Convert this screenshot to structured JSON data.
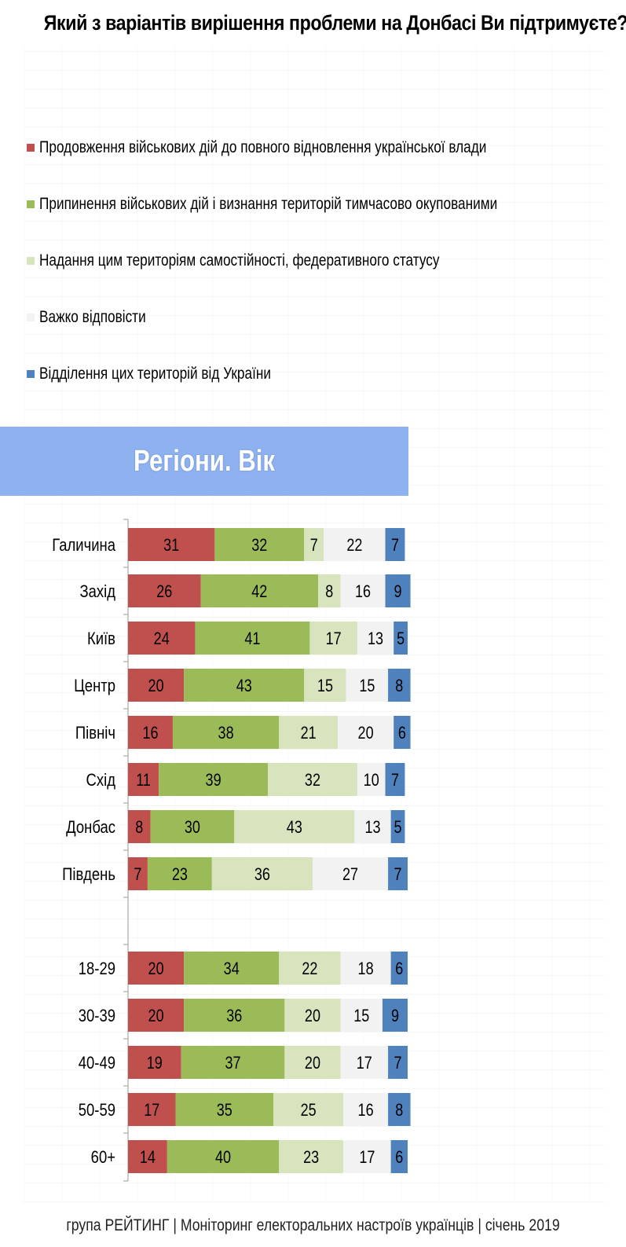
{
  "title": "Який з варіантів вирішення проблеми на Донбасі Ви підтримуєте?",
  "section_title": "Регіони. Вік",
  "footer": "група РЕЙТИНГ | Моніторинг електоральних настроїв українців | січень 2019",
  "colors": [
    "#c0504d",
    "#9bbb59",
    "#d7e4bd",
    "#f2f2f2",
    "#4f81bd"
  ],
  "chart_data": {
    "type": "bar",
    "orientation": "horizontal",
    "stacked": true,
    "title": "Який з варіантів вирішення проблеми на Донбасі Ви підтримуєте?",
    "legend_position": "top",
    "xlim": [
      0,
      100
    ],
    "groups": [
      {
        "name": "",
        "categories": [
          "Галичина",
          "Захід",
          "Київ",
          "Центр",
          "Північ",
          "Схід",
          "Донбас",
          "Південь"
        ]
      },
      {
        "name": "",
        "categories": [
          "18-29",
          "30-39",
          "40-49",
          "50-59",
          "60+"
        ]
      }
    ],
    "categories": [
      "Галичина",
      "Захід",
      "Київ",
      "Центр",
      "Північ",
      "Схід",
      "Донбас",
      "Південь",
      "18-29",
      "30-39",
      "40-49",
      "50-59",
      "60+"
    ],
    "series": [
      {
        "name": "Продовження військових дій до повного відновлення української влади",
        "values": [
          31,
          26,
          24,
          20,
          16,
          11,
          8,
          7,
          20,
          20,
          19,
          17,
          14
        ]
      },
      {
        "name": "Припинення військових дій і визнання територій тимчасово окупованими",
        "values": [
          32,
          42,
          41,
          43,
          38,
          39,
          30,
          23,
          34,
          36,
          37,
          35,
          40
        ]
      },
      {
        "name": "Надання цим територіям самостійності, федеративного статусу",
        "values": [
          7,
          8,
          17,
          15,
          21,
          32,
          43,
          36,
          22,
          20,
          20,
          25,
          23
        ]
      },
      {
        "name": "Важко відповісти",
        "values": [
          22,
          16,
          13,
          15,
          20,
          10,
          13,
          27,
          18,
          15,
          17,
          16,
          17
        ]
      },
      {
        "name": "Відділення цих територій від України",
        "values": [
          7,
          9,
          5,
          8,
          6,
          7,
          5,
          7,
          6,
          9,
          7,
          8,
          6
        ]
      }
    ]
  }
}
